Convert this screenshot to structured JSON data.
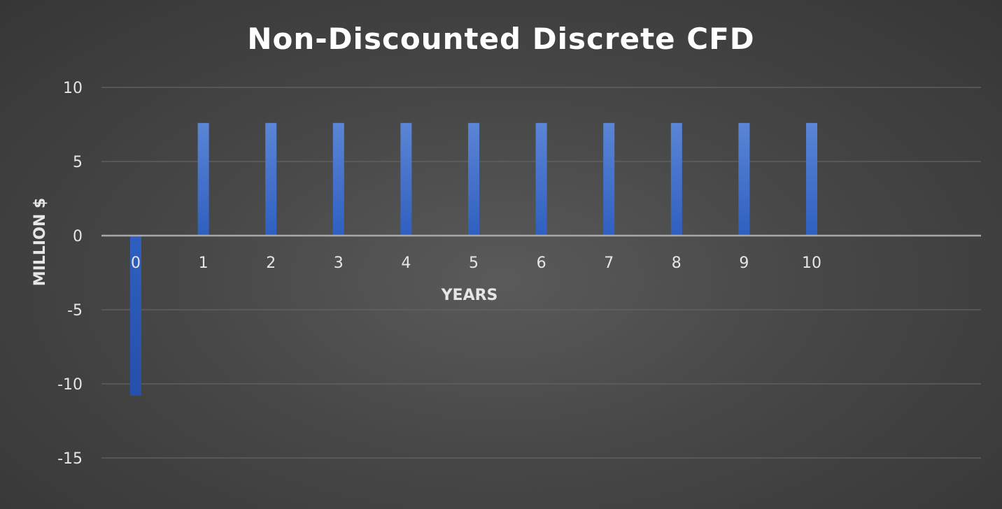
{
  "chart_data": {
    "type": "bar",
    "title": "Non-Discounted Discrete CFD",
    "xlabel": "YEARS",
    "ylabel": "MILLION $",
    "categories": [
      "0",
      "1",
      "2",
      "3",
      "4",
      "5",
      "6",
      "7",
      "8",
      "9",
      "10"
    ],
    "values": [
      -10.8,
      7.6,
      7.6,
      7.6,
      7.6,
      7.6,
      7.6,
      7.6,
      7.6,
      7.6,
      7.6
    ],
    "ylim": [
      -15,
      10
    ],
    "yticks": [
      10,
      5,
      0,
      -5,
      -10,
      -15
    ],
    "grid": true,
    "bar_color": "#3d6cc9",
    "background_color": "#474747"
  }
}
